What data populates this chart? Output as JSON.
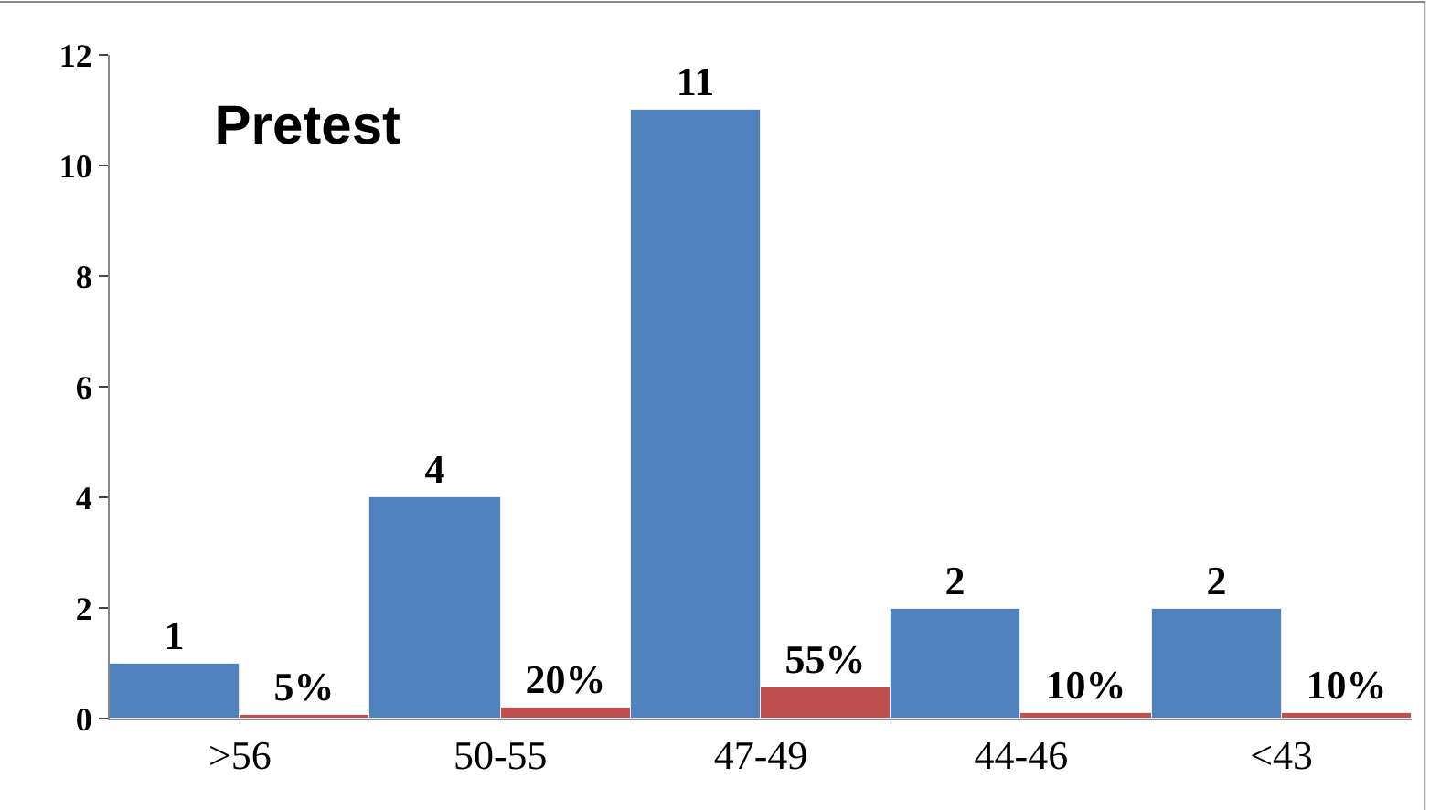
{
  "chart_data": {
    "type": "bar",
    "title": "Pretest",
    "categories": [
      ">56",
      "50-55",
      "47-49",
      "44-46",
      "<43"
    ],
    "series": [
      {
        "color": "#4f81bd",
        "values": [
          1,
          4,
          11,
          2,
          2
        ],
        "value_labels": [
          "1",
          "4",
          "11",
          "2",
          "2"
        ]
      },
      {
        "color": "#c0504d",
        "values": [
          0.05,
          0.2,
          0.55,
          0.1,
          0.1
        ],
        "value_labels": [
          "5%",
          "20%",
          "55%",
          "10%",
          "10%"
        ]
      }
    ],
    "ylim": [
      0,
      12
    ],
    "yticks": [
      0,
      2,
      4,
      6,
      8,
      10,
      12
    ],
    "grid": false
  }
}
